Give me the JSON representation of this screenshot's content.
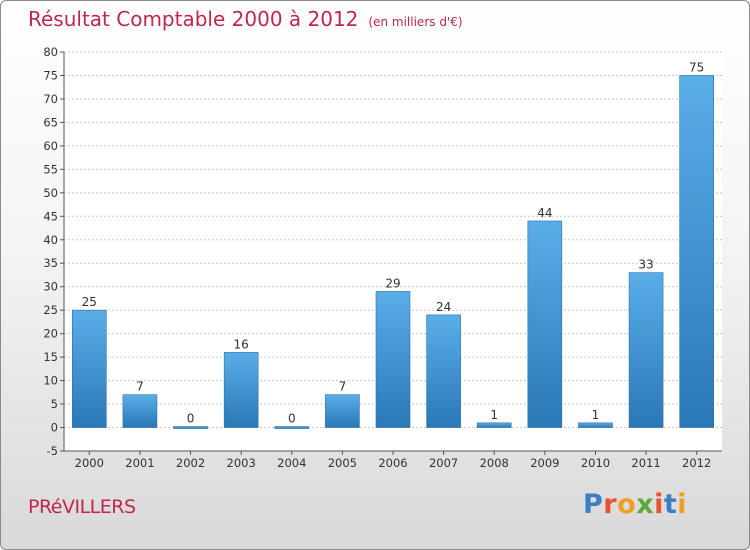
{
  "header": {
    "title": "Résultat Comptable 2000 à 2012",
    "subtitle": "(en milliers d'€)"
  },
  "footer": {
    "commune": "PRéVILLERS",
    "logo_text": "Proxiti"
  },
  "colors": {
    "title": "#c0284a",
    "bar_top": "#5aaee8",
    "bar_bottom": "#2a78b6",
    "grid": "#c8c8c8"
  },
  "chart_data": {
    "type": "bar",
    "title": "Résultat Comptable 2000 à 2012",
    "subtitle": "(en milliers d'€)",
    "categories": [
      "2000",
      "2001",
      "2002",
      "2003",
      "2004",
      "2005",
      "2006",
      "2007",
      "2008",
      "2009",
      "2010",
      "2011",
      "2012"
    ],
    "values": [
      25,
      7,
      0,
      16,
      0,
      7,
      29,
      24,
      1,
      44,
      1,
      33,
      75
    ],
    "data_labels": [
      "25",
      "7",
      "0",
      "16",
      "0",
      "7",
      "29",
      "24",
      "1",
      "44",
      "1",
      "33",
      "75"
    ],
    "ylim": [
      -5,
      80
    ],
    "yticks": [
      -5,
      0,
      5,
      10,
      15,
      20,
      25,
      30,
      35,
      40,
      45,
      50,
      55,
      60,
      65,
      70,
      75,
      80
    ],
    "grid": true,
    "legend": "none"
  }
}
